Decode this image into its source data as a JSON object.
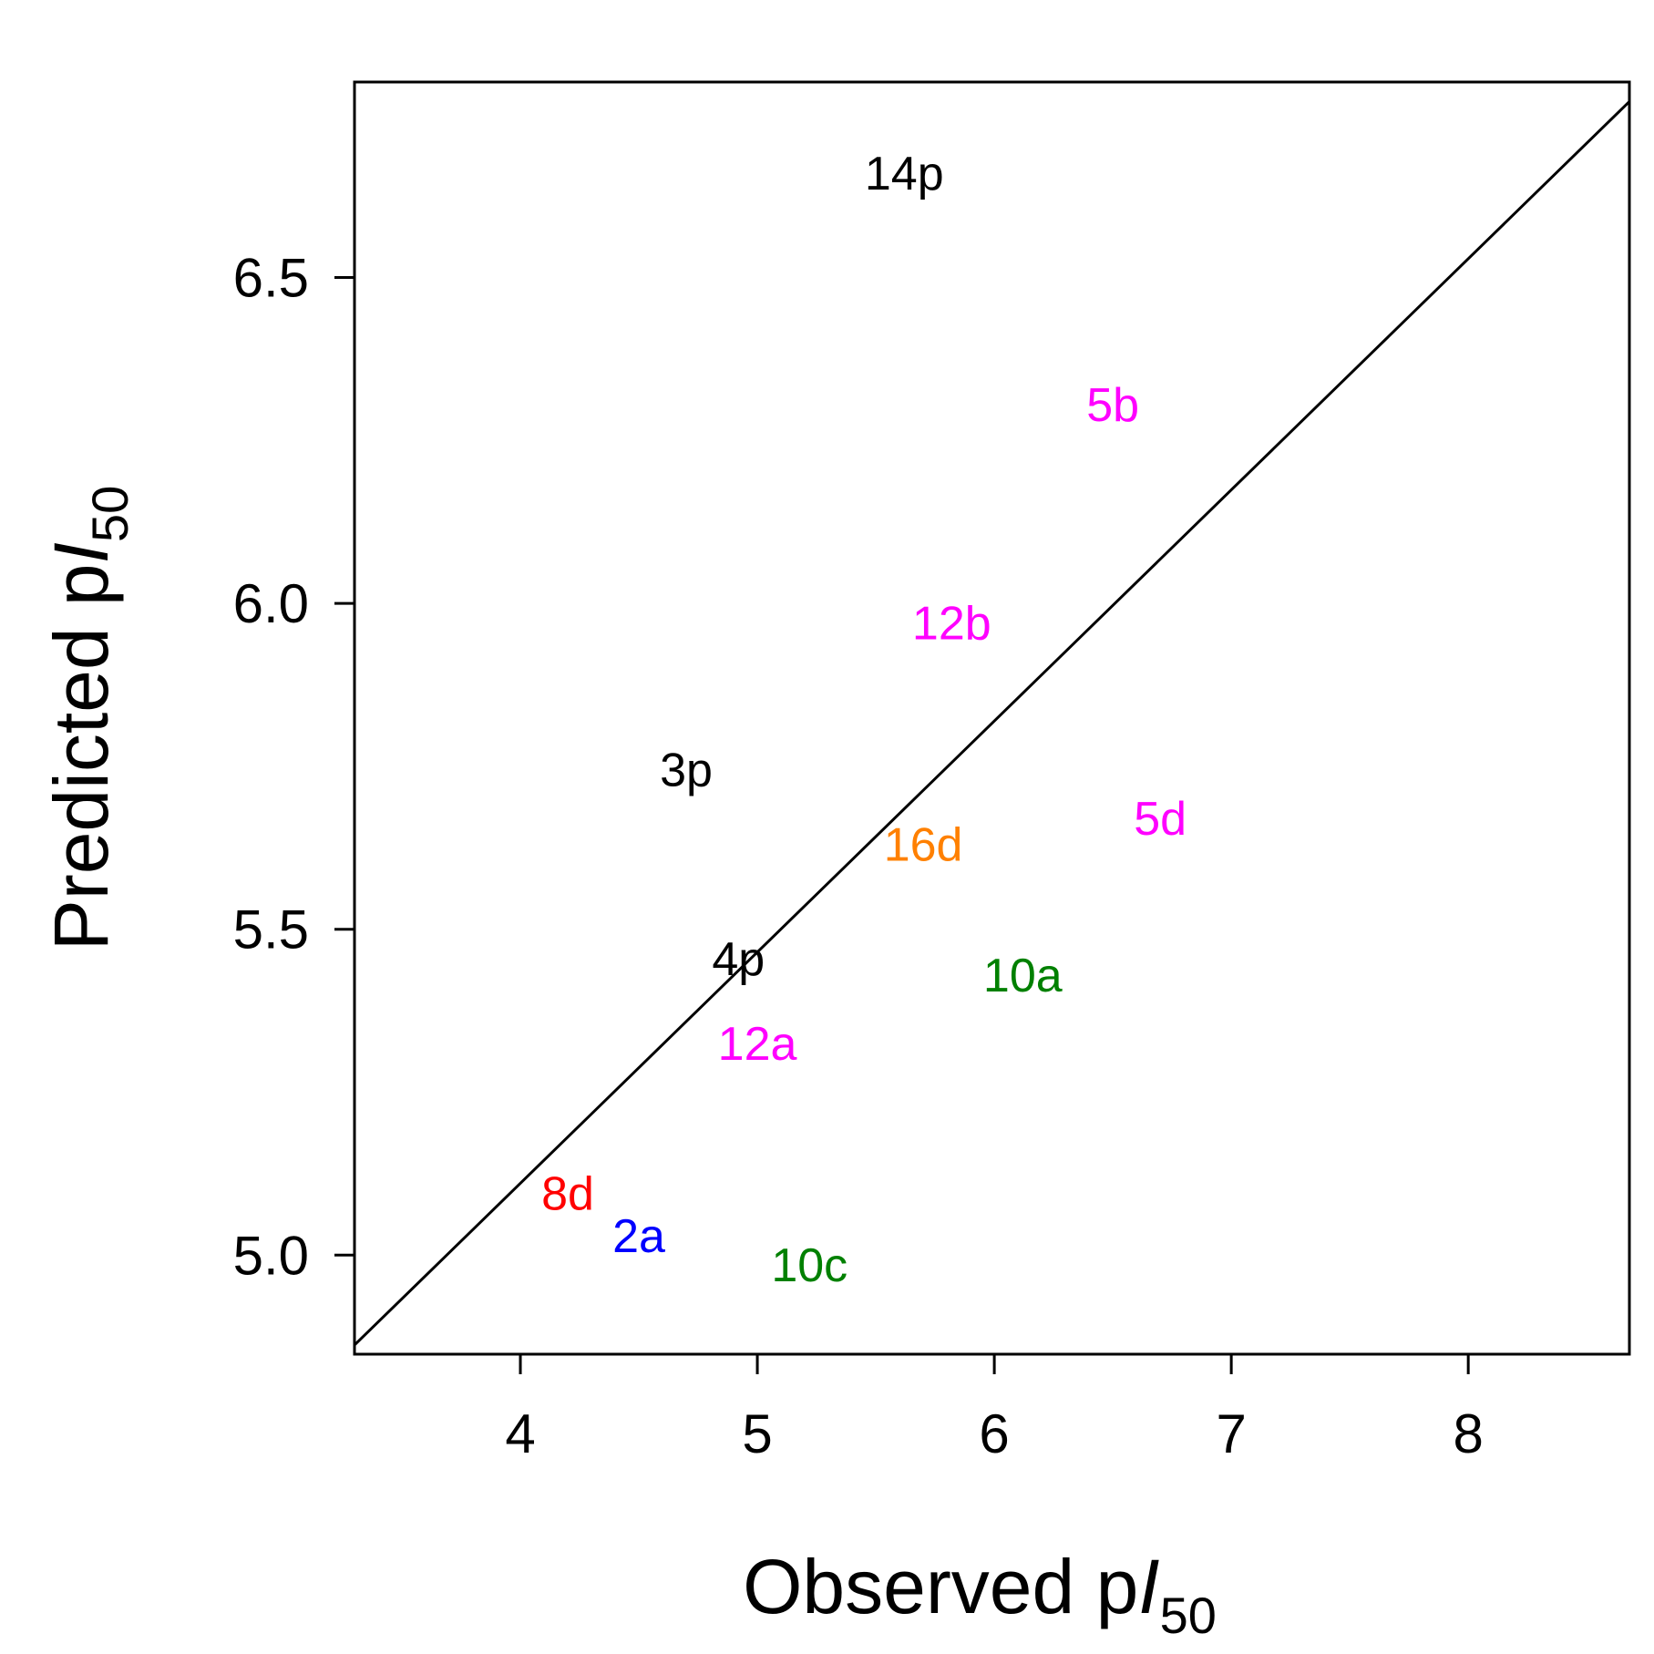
{
  "chart_data": {
    "type": "scatter",
    "title": "",
    "xlabel": {
      "prefix": "Observed p",
      "italic": "I",
      "subscript": "50"
    },
    "ylabel": {
      "prefix": "Predicted p",
      "italic": "I",
      "subscript": "50"
    },
    "xlim": [
      3.3,
      8.68
    ],
    "ylim": [
      4.848,
      6.8
    ],
    "xticks": [
      4,
      5,
      6,
      7,
      8
    ],
    "xtick_labels": [
      "4",
      "5",
      "6",
      "7",
      "8"
    ],
    "yticks": [
      5.0,
      5.5,
      6.0,
      6.5
    ],
    "ytick_labels": [
      "5.0",
      "5.5",
      "6.0",
      "6.5"
    ],
    "reference_line": {
      "from": [
        3.3,
        4.862
      ],
      "to": [
        8.68,
        6.77
      ]
    },
    "grid": false,
    "legend": "none",
    "points": [
      {
        "label": "14p",
        "x": 5.62,
        "y": 6.66,
        "color": "#000000"
      },
      {
        "label": "5b",
        "x": 6.5,
        "y": 6.305,
        "color": "#ff00ff"
      },
      {
        "label": "12b",
        "x": 5.82,
        "y": 5.97,
        "color": "#ff00ff"
      },
      {
        "label": "3p",
        "x": 4.7,
        "y": 5.745,
        "color": "#000000"
      },
      {
        "label": "5d",
        "x": 6.7,
        "y": 5.67,
        "color": "#ff00ff"
      },
      {
        "label": "16d",
        "x": 5.7,
        "y": 5.63,
        "color": "#ff8000"
      },
      {
        "label": "4p",
        "x": 4.92,
        "y": 5.455,
        "color": "#000000"
      },
      {
        "label": "10a",
        "x": 6.12,
        "y": 5.43,
        "color": "#008000"
      },
      {
        "label": "12a",
        "x": 5.0,
        "y": 5.325,
        "color": "#ff00ff"
      },
      {
        "label": "8d",
        "x": 4.2,
        "y": 5.095,
        "color": "#ff0000"
      },
      {
        "label": "2a",
        "x": 4.5,
        "y": 5.03,
        "color": "#0000ff"
      },
      {
        "label": "10c",
        "x": 5.22,
        "y": 4.985,
        "color": "#008000"
      }
    ]
  }
}
